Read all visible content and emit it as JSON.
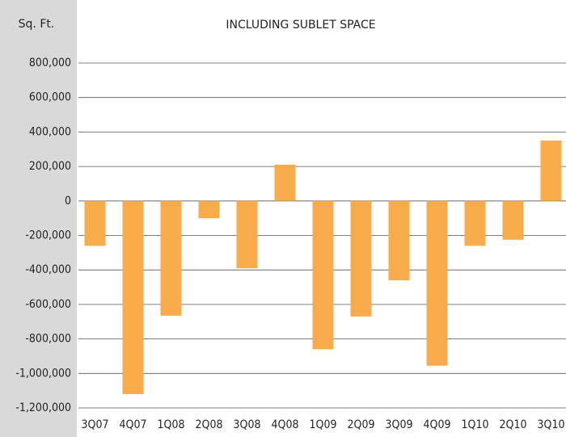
{
  "chart_data": {
    "type": "bar",
    "title": "INCLUDING SUBLET SPACE",
    "y_label": "Sq. Ft.",
    "categories": [
      "3Q07",
      "4Q07",
      "1Q08",
      "2Q08",
      "3Q08",
      "4Q08",
      "1Q09",
      "2Q09",
      "3Q09",
      "4Q09",
      "1Q10",
      "2Q10",
      "3Q10"
    ],
    "values": [
      -260000,
      -1120000,
      -665000,
      -100000,
      -390000,
      210000,
      -860000,
      -670000,
      -460000,
      -955000,
      -260000,
      -225000,
      350000
    ],
    "color": "#f7ab4b",
    "ylim": [
      -1200000,
      800000
    ],
    "yticks": [
      {
        "value": 800000,
        "label": "800,000"
      },
      {
        "value": 600000,
        "label": "600,000"
      },
      {
        "value": 400000,
        "label": "400,000"
      },
      {
        "value": 200000,
        "label": "200,000"
      },
      0,
      {
        "value": -200000,
        "label": "-200,000"
      },
      {
        "value": -400000,
        "label": "-400,000"
      },
      {
        "value": -600000,
        "label": "-600,000"
      },
      {
        "value": -800000,
        "label": "-800,000"
      },
      {
        "value": -1000000,
        "label": "-1,000,000"
      },
      {
        "value": -1200000,
        "label": "-1,200,000"
      }
    ],
    "grid": true
  }
}
